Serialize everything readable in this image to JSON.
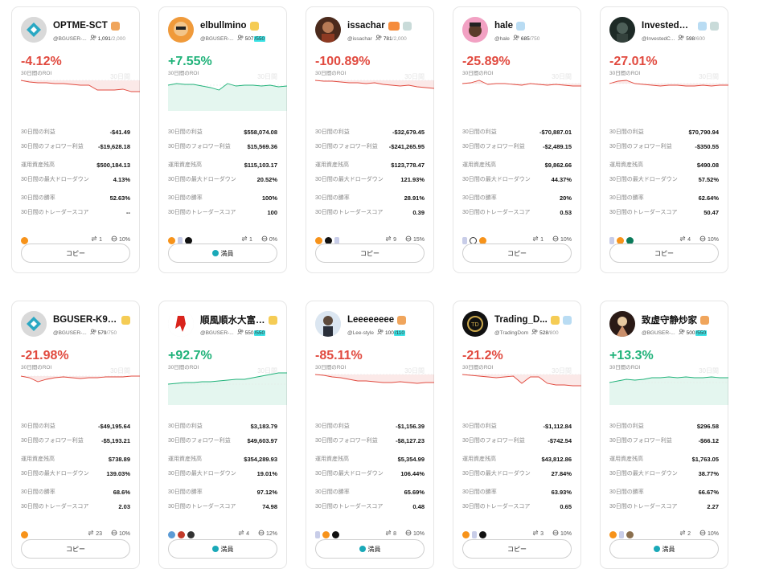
{
  "labels": {
    "roi": "30日間のROI",
    "watermark": "30日間",
    "profit": "30日間の利益",
    "follower_profit": "30日間のフォロワー利益",
    "aum": "運用資産残高",
    "max_drawdown": "30日間の最大ドローダウン",
    "win_rate": "30日間の勝率",
    "trader_score": "30日間のトレーダースコア"
  },
  "colors": {
    "negative": "#e14a3f",
    "positive": "#1fb279",
    "full_highlight": "#3ce3e6"
  },
  "cards": [
    {
      "name": "OPTME-SCT",
      "handle": "@BGUSER-...",
      "followers": "1,091",
      "cap": "/2,000",
      "cap_full": false,
      "roi": "-4.12%",
      "trend": "neg",
      "profit": "-$41.49",
      "follower_profit": "-$19,628.18",
      "aum": "$500,184.13",
      "max_drawdown": "4.13%",
      "win_rate": "52.63%",
      "trader_score": "--",
      "trades": "1",
      "share": "10%",
      "button": "コピー",
      "button_full": false,
      "badges": [
        "orange"
      ],
      "coins": [
        "btc"
      ],
      "avatar_icon": "diamond-avatar-icon",
      "spark": [
        40,
        42,
        43,
        43,
        44,
        44,
        45,
        46,
        46,
        52,
        52,
        52,
        51,
        54,
        54
      ]
    },
    {
      "name": "elbullmino",
      "handle": "@BGUSER-...",
      "followers": "507",
      "cap": "/550",
      "cap_full": true,
      "roi": "+7.55%",
      "trend": "pos",
      "profit": "$558,074.08",
      "follower_profit": "$15,569.36",
      "aum": "$115,103.17",
      "max_drawdown": "20.52%",
      "win_rate": "100%",
      "trader_score": "100",
      "trades": "1",
      "share": "0%",
      "button": "満員",
      "button_full": true,
      "badges": [
        "gold"
      ],
      "coins": [
        "btc",
        "eth",
        "sol"
      ],
      "avatar_icon": "cartoon-avatar-icon",
      "spark": [
        46,
        44,
        45,
        45,
        47,
        49,
        52,
        44,
        47,
        46,
        46,
        47,
        46,
        48,
        47
      ]
    },
    {
      "name": "issachar",
      "handle": "@issachar",
      "followers": "781",
      "cap": "/2,000",
      "cap_full": false,
      "roi": "-100.89%",
      "trend": "neg",
      "profit": "-$32,679.45",
      "follower_profit": "-$241,265.95",
      "aum": "$123,778.47",
      "max_drawdown": "121.93%",
      "win_rate": "28.91%",
      "trader_score": "0.39",
      "trades": "9",
      "share": "15%",
      "button": "コピー",
      "button_full": false,
      "badges": [
        "fire",
        "grey"
      ],
      "coins": [
        "btc",
        "sol",
        "eth"
      ],
      "avatar_icon": "portrait-avatar-icon",
      "spark": [
        40,
        41,
        41,
        42,
        43,
        43,
        44,
        43,
        45,
        46,
        47,
        46,
        48,
        49,
        50
      ]
    },
    {
      "name": "hale",
      "handle": "@hale",
      "followers": "685",
      "cap": "/750",
      "cap_full": false,
      "roi": "-25.89%",
      "trend": "neg",
      "profit": "-$70,887.01",
      "follower_profit": "-$2,489.15",
      "aum": "$9,862.66",
      "max_drawdown": "44.37%",
      "win_rate": "20%",
      "trader_score": "0.53",
      "trades": "1",
      "share": "10%",
      "button": "コピー",
      "button_full": false,
      "badges": [
        "blue"
      ],
      "coins": [
        "eth",
        "x",
        "btc"
      ],
      "avatar_icon": "pink-avatar-icon",
      "spark": [
        44,
        43,
        40,
        45,
        44,
        44,
        45,
        46,
        44,
        45,
        46,
        45,
        46,
        47,
        47
      ]
    },
    {
      "name": "InvestedCa...",
      "handle": "@InvestedC...",
      "followers": "598",
      "cap": "/600",
      "cap_full": false,
      "roi": "-27.01%",
      "trend": "neg",
      "profit": "$70,790.94",
      "follower_profit": "-$350.55",
      "aum": "$490.08",
      "max_drawdown": "57.52%",
      "win_rate": "62.64%",
      "trader_score": "50.47",
      "trades": "4",
      "share": "10%",
      "button": "コピー",
      "button_full": false,
      "badges": [
        "blue",
        "grey"
      ],
      "coins": [
        "eth",
        "btc",
        "g"
      ],
      "avatar_icon": "dark-avatar-icon",
      "spark": [
        44,
        41,
        40,
        44,
        45,
        46,
        47,
        46,
        46,
        47,
        47,
        46,
        47,
        46,
        46
      ]
    },
    {
      "name": "BGUSER-K993...",
      "handle": "@BGUSER-...",
      "followers": "579",
      "cap": "/750",
      "cap_full": false,
      "roi": "-21.98%",
      "trend": "neg",
      "profit": "-$49,195.64",
      "follower_profit": "-$5,193.21",
      "aum": "$738.89",
      "max_drawdown": "139.03%",
      "win_rate": "68.6%",
      "trader_score": "2.03",
      "trades": "23",
      "share": "10%",
      "button": "コピー",
      "button_full": false,
      "badges": [
        "gold"
      ],
      "coins": [
        "btc"
      ],
      "avatar_icon": "diamond-avatar-icon",
      "spark": [
        42,
        44,
        49,
        46,
        44,
        43,
        44,
        45,
        44,
        44,
        43,
        43,
        43,
        42,
        42
      ]
    },
    {
      "name": "順風順水大富大貴",
      "handle": "@BGUSER-...",
      "followers": "550",
      "cap": "/550",
      "cap_full": true,
      "roi": "+92.7%",
      "trend": "pos",
      "profit": "$3,183.79",
      "follower_profit": "$49,603.97",
      "aum": "$354,289.93",
      "max_drawdown": "19.01%",
      "win_rate": "97.12%",
      "trader_score": "74.98",
      "trades": "4",
      "share": "12%",
      "button": "満員",
      "button_full": true,
      "badges": [
        "gold"
      ],
      "coins": [
        "l",
        "r",
        "h"
      ],
      "avatar_icon": "red-figure-avatar-icon",
      "spark": [
        52,
        51,
        50,
        50,
        49,
        49,
        48,
        47,
        46,
        46,
        44,
        42,
        40,
        38,
        38
      ]
    },
    {
      "name": "Leeeeeeee",
      "handle": "@Lee-style",
      "followers": "100",
      "cap": "/110",
      "cap_full": true,
      "roi": "-85.11%",
      "trend": "neg",
      "profit": "-$1,156.39",
      "follower_profit": "-$8,127.23",
      "aum": "$5,354.99",
      "max_drawdown": "106.44%",
      "win_rate": "65.69%",
      "trader_score": "0.48",
      "trades": "8",
      "share": "10%",
      "button": "満員",
      "button_full": true,
      "badges": [
        "orange"
      ],
      "coins": [
        "eth",
        "btc",
        "sol"
      ],
      "avatar_icon": "person-avatar-icon",
      "spark": [
        40,
        41,
        43,
        44,
        46,
        48,
        48,
        49,
        50,
        50,
        49,
        50,
        51,
        50,
        50
      ]
    },
    {
      "name": "Trading_D...",
      "handle": "@TradingDom",
      "followers": "528",
      "cap": "/800",
      "cap_full": false,
      "roi": "-21.2%",
      "trend": "neg",
      "profit": "-$1,112.84",
      "follower_profit": "-$742.54",
      "aum": "$43,812.86",
      "max_drawdown": "27.84%",
      "win_rate": "63.93%",
      "trader_score": "0.65",
      "trades": "3",
      "share": "10%",
      "button": "コピー",
      "button_full": false,
      "badges": [
        "gold",
        "blue"
      ],
      "coins": [
        "btc",
        "eth",
        "sol"
      ],
      "avatar_icon": "dark-logo-avatar-icon",
      "spark": [
        40,
        41,
        42,
        43,
        44,
        43,
        42,
        51,
        43,
        43,
        51,
        53,
        53,
        54,
        54
      ]
    },
    {
      "name": "致虚守静炒家",
      "handle": "@BGUSER-...",
      "followers": "500",
      "cap": "/550",
      "cap_full": true,
      "roi": "+13.3%",
      "trend": "pos",
      "profit": "$296.58",
      "follower_profit": "-$66.12",
      "aum": "$1,763.05",
      "max_drawdown": "38.77%",
      "win_rate": "66.67%",
      "trader_score": "2.27",
      "trades": "2",
      "share": "10%",
      "button": "満員",
      "button_full": true,
      "badges": [
        "orange"
      ],
      "coins": [
        "btc",
        "eth",
        "ape"
      ],
      "avatar_icon": "sunset-avatar-icon",
      "spark": [
        50,
        48,
        46,
        47,
        46,
        44,
        44,
        43,
        44,
        43,
        44,
        44,
        43,
        44,
        44
      ]
    }
  ]
}
